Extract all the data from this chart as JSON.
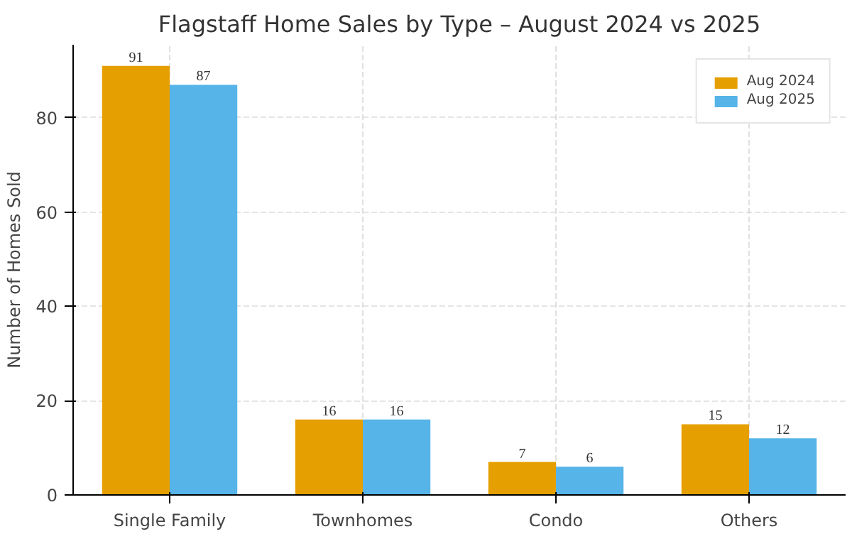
{
  "chart_data": {
    "type": "bar",
    "title": "Flagstaff Home Sales by Type – August 2024 vs 2025",
    "ylabel": "Number of Homes Sold",
    "categories": [
      "Single Family",
      "Townhomes",
      "Condo",
      "Others"
    ],
    "series": [
      {
        "name": "Aug 2024",
        "color": "#e69f00",
        "values": [
          91,
          16,
          7,
          15
        ]
      },
      {
        "name": "Aug 2025",
        "color": "#56b4e9",
        "values": [
          87,
          16,
          6,
          12
        ]
      }
    ],
    "ylim": [
      0,
      95.5
    ],
    "yticks": [
      0,
      20,
      40,
      60,
      80
    ],
    "grid": true,
    "legend": "top right",
    "data_labels": true
  }
}
